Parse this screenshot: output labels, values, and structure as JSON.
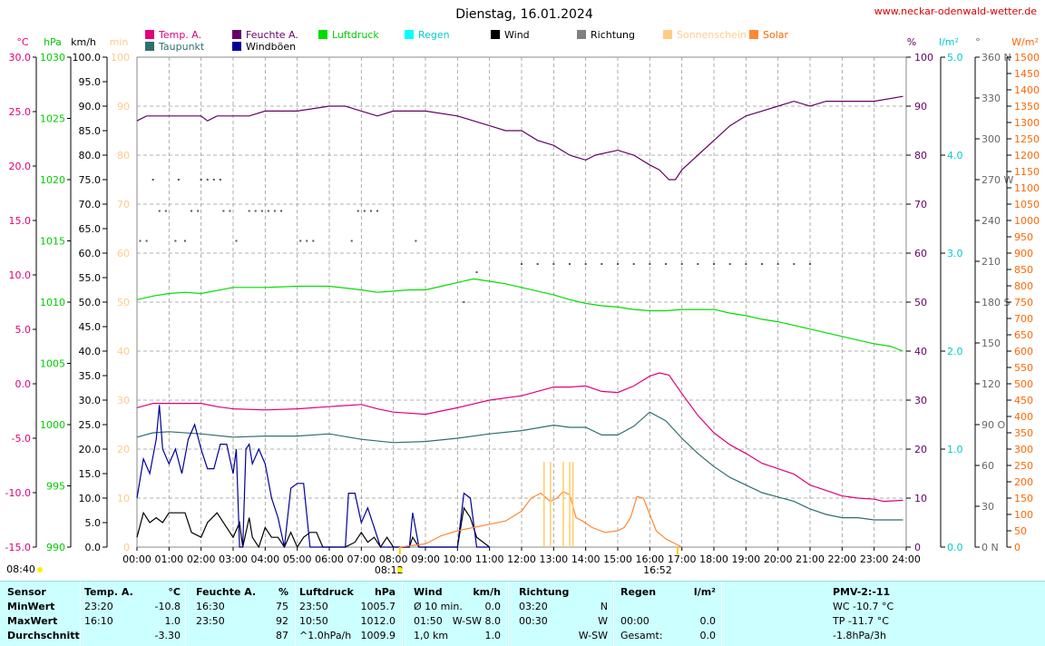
{
  "header": {
    "title": "Dienstag, 16.01.2024",
    "website": "www.neckar-odenwald-wetter.de"
  },
  "legend": [
    {
      "name": "Temp. A.",
      "color": "#e0007c",
      "row": 0,
      "col": 0
    },
    {
      "name": "Taupunkt",
      "color": "#2e6f6f",
      "row": 1,
      "col": 0
    },
    {
      "name": "Feuchte A.",
      "color": "#660066",
      "row": 0,
      "col": 1
    },
    {
      "name": "Windböen",
      "color": "#000099",
      "row": 1,
      "col": 1
    },
    {
      "name": "Luftdruck",
      "color": "#00dd00",
      "row": 0,
      "col": 2
    },
    {
      "name": "Regen",
      "color": "#00ffff",
      "row": 0,
      "col": 3
    },
    {
      "name": "Wind",
      "color": "#000000",
      "row": 0,
      "col": 4
    },
    {
      "name": "Richtung",
      "color": "#808080",
      "row": 0,
      "col": 5
    },
    {
      "name": "Sonnenschein",
      "color": "#ffcc88",
      "row": 0,
      "col": 6
    },
    {
      "name": "Solar",
      "color": "#ff8833",
      "row": 0,
      "col": 7
    }
  ],
  "axes": {
    "temp": {
      "unit": "°C",
      "color": "#e0007c",
      "ticks": [
        "30.0",
        "25.0",
        "20.0",
        "15.0",
        "10.0",
        "5.0",
        "0.0",
        "-5.0",
        "-10.0",
        "-15.0"
      ]
    },
    "pressure": {
      "unit": "hPa",
      "color": "#00bb00",
      "ticks": [
        "1030",
        "1025",
        "1020",
        "1015",
        "1010",
        "1005",
        "1000",
        "995",
        "990"
      ]
    },
    "wind": {
      "unit": "km/h",
      "color": "#000000",
      "ticks": [
        "100.0",
        "95.0",
        "90.0",
        "85.0",
        "80.0",
        "75.0",
        "70.0",
        "65.0",
        "60.0",
        "55.0",
        "50.0",
        "45.0",
        "40.0",
        "35.0",
        "30.0",
        "25.0",
        "20.0",
        "15.0",
        "10.0",
        "5.0",
        "0.0"
      ]
    },
    "sun": {
      "unit": "min",
      "color": "#ffcc88",
      "ticks": [
        "100",
        "90",
        "80",
        "70",
        "60",
        "50",
        "40",
        "30",
        "20",
        "10",
        "0"
      ]
    },
    "humidity": {
      "unit": "%",
      "color": "#660066",
      "ticks": [
        "100",
        "90",
        "80",
        "70",
        "60",
        "50",
        "40",
        "30",
        "20",
        "10",
        "0"
      ]
    },
    "rain": {
      "unit": "l/m²",
      "color": "#00cccc",
      "ticks": [
        "5.0",
        "4.0",
        "3.0",
        "2.0",
        "1.0",
        "0.0"
      ]
    },
    "direction": {
      "unit": "°",
      "color": "#666666",
      "ticks": [
        "360 N",
        "330",
        "300",
        "270 W",
        "240",
        "210",
        "180 S",
        "150",
        "120",
        "90 O",
        "60",
        "30",
        "0 N"
      ]
    },
    "solar": {
      "unit": "W/m²",
      "color": "#ff6600",
      "ticks": [
        "1500",
        "1450",
        "1400",
        "1350",
        "1300",
        "1250",
        "1200",
        "1150",
        "1100",
        "1050",
        "1000",
        "950",
        "900",
        "850",
        "800",
        "750",
        "700",
        "650",
        "600",
        "550",
        "500",
        "450",
        "400",
        "350",
        "300",
        "250",
        "200",
        "150",
        "100",
        "50",
        "0"
      ]
    },
    "time_ticks": [
      "00:00",
      "01:00",
      "02:00",
      "03:00",
      "04:00",
      "05:00",
      "06:00",
      "07:00",
      "08:00",
      "09:00",
      "10:00",
      "11:00",
      "12:00",
      "13:00",
      "14:00",
      "15:00",
      "16:00",
      "17:00",
      "18:00",
      "19:00",
      "20:00",
      "21:00",
      "22:00",
      "23:00",
      "24:00"
    ]
  },
  "sun_events": {
    "moonrise": "08:40",
    "sunrise": "08:12",
    "sunset": "16:52"
  },
  "chart_data": {
    "type": "line",
    "x_unit": "hour of day",
    "xlim": [
      0,
      24
    ],
    "grid": true,
    "series": [
      {
        "name": "Temp. A.",
        "unit": "°C",
        "x": [
          0,
          0.5,
          1,
          1.5,
          2,
          2.5,
          3,
          4,
          5,
          6,
          7,
          7.5,
          8,
          9,
          10,
          11,
          12,
          13,
          13.5,
          14,
          14.5,
          15,
          15.5,
          16,
          16.3,
          16.6,
          17,
          17.5,
          18,
          18.5,
          19,
          19.5,
          20,
          20.5,
          21,
          21.5,
          22,
          22.5,
          23,
          23.3,
          23.9
        ],
        "values": [
          -2.2,
          -1.8,
          -1.8,
          -1.8,
          -1.8,
          -2.1,
          -2.3,
          -2.4,
          -2.3,
          -2.1,
          -1.9,
          -2.3,
          -2.6,
          -2.8,
          -2.2,
          -1.5,
          -1.1,
          -0.3,
          -0.3,
          -0.2,
          -0.7,
          -0.8,
          -0.2,
          0.7,
          1.0,
          0.8,
          -0.9,
          -2.9,
          -4.5,
          -5.6,
          -6.4,
          -7.3,
          -7.8,
          -8.3,
          -9.3,
          -9.8,
          -10.3,
          -10.5,
          -10.6,
          -10.8,
          -10.7
        ]
      },
      {
        "name": "Taupunkt",
        "unit": "°C",
        "x": [
          0,
          0.5,
          1,
          2,
          3,
          4,
          5,
          6,
          7,
          8,
          9,
          10,
          11,
          12,
          13,
          13.5,
          14,
          14.5,
          15,
          15.5,
          16,
          16.5,
          17,
          17.5,
          18,
          18.5,
          19,
          19.5,
          20,
          20.5,
          21,
          21.5,
          22,
          22.5,
          23,
          23.9
        ],
        "values": [
          -4.9,
          -4.5,
          -4.4,
          -4.6,
          -4.9,
          -4.8,
          -4.8,
          -4.6,
          -5.1,
          -5.4,
          -5.3,
          -5.0,
          -4.6,
          -4.3,
          -3.8,
          -4.0,
          -4.0,
          -4.7,
          -4.7,
          -3.9,
          -2.6,
          -3.4,
          -5.0,
          -6.4,
          -7.6,
          -8.6,
          -9.3,
          -10.0,
          -10.4,
          -10.8,
          -11.5,
          -12.0,
          -12.3,
          -12.3,
          -12.5,
          -12.5
        ]
      },
      {
        "name": "Feuchte A.",
        "unit": "%",
        "x": [
          0,
          0.3,
          1,
          2,
          2.2,
          2.5,
          3,
          3.5,
          4,
          5,
          6,
          6.5,
          7,
          7.5,
          8,
          9,
          10,
          10.5,
          11,
          11.5,
          12,
          12.5,
          13,
          13.5,
          14,
          14.3,
          15,
          15.5,
          16,
          16.3,
          16.6,
          16.8,
          17,
          17.5,
          18,
          18.5,
          19,
          19.5,
          20,
          20.5,
          21,
          21.5,
          22,
          22.5,
          23,
          23.9
        ],
        "values": [
          87,
          88,
          88,
          88,
          87,
          88,
          88,
          88,
          89,
          89,
          90,
          90,
          89,
          88,
          89,
          89,
          88,
          87,
          86,
          85,
          85,
          83,
          82,
          80,
          79,
          80,
          81,
          80,
          78,
          77,
          75,
          75,
          77,
          80,
          83,
          86,
          88,
          89,
          90,
          91,
          90,
          91,
          91,
          91,
          91,
          92
        ]
      },
      {
        "name": "Luftdruck",
        "unit": "hPa",
        "x": [
          0,
          0.5,
          1,
          1.5,
          2,
          3,
          4,
          5,
          6,
          7,
          7.5,
          8,
          8.5,
          9,
          9.5,
          10,
          10.5,
          11,
          11.5,
          12,
          12.5,
          13,
          13.5,
          14,
          14.5,
          15,
          15.5,
          16,
          16.5,
          17,
          17.5,
          18,
          18.5,
          19,
          19.5,
          20,
          20.5,
          21,
          21.5,
          22,
          22.5,
          23,
          23.5,
          23.9
        ],
        "values": [
          1010.2,
          1010.5,
          1010.7,
          1010.8,
          1010.7,
          1011.2,
          1011.2,
          1011.3,
          1011.3,
          1011.0,
          1010.8,
          1010.9,
          1011.0,
          1011.0,
          1011.3,
          1011.6,
          1011.9,
          1011.7,
          1011.5,
          1011.2,
          1010.9,
          1010.6,
          1010.2,
          1009.9,
          1009.7,
          1009.6,
          1009.4,
          1009.3,
          1009.3,
          1009.4,
          1009.4,
          1009.4,
          1009.1,
          1008.9,
          1008.6,
          1008.4,
          1008.1,
          1007.8,
          1007.5,
          1007.2,
          1006.9,
          1006.6,
          1006.4,
          1006.0
        ]
      },
      {
        "name": "Wind",
        "unit": "km/h",
        "x": [
          0,
          0.2,
          0.4,
          0.6,
          0.8,
          1,
          1.5,
          1.7,
          2,
          2.2,
          2.5,
          2.8,
          3,
          3.2,
          3.3,
          3.5,
          3.6,
          3.8,
          4,
          4.2,
          4.4,
          4.6,
          4.8,
          5,
          5.2,
          5.4,
          5.6,
          5.8,
          6,
          6.5,
          6.8,
          7,
          7.2,
          7.4,
          7.6,
          7.8,
          8,
          8.5,
          8.6,
          8.8,
          9,
          9.5,
          10,
          10.2,
          10.4,
          10.6,
          10.8,
          11
        ],
        "values": [
          2,
          7,
          5,
          6,
          5,
          7,
          7,
          3,
          2,
          5,
          7,
          4,
          2,
          5,
          0,
          6,
          2,
          0,
          4,
          2,
          2,
          0,
          3,
          0,
          2,
          3,
          3,
          0,
          0,
          0,
          1,
          3,
          1,
          2,
          0,
          2,
          0,
          0,
          2,
          0,
          0,
          0,
          0,
          8,
          6,
          2,
          1,
          0
        ]
      },
      {
        "name": "Windböen",
        "unit": "km/h",
        "x": [
          0,
          0.2,
          0.4,
          0.6,
          0.7,
          0.8,
          1,
          1.2,
          1.4,
          1.6,
          1.8,
          2,
          2.2,
          2.4,
          2.6,
          2.8,
          3,
          3.1,
          3.2,
          3.3,
          3.4,
          3.5,
          3.6,
          3.8,
          4,
          4.2,
          4.4,
          4.6,
          4.8,
          5,
          5.2,
          5.4,
          5.6,
          5.8,
          6,
          6.5,
          6.6,
          6.8,
          7,
          7.2,
          7.4,
          7.6,
          7.8,
          8,
          8.5,
          8.6,
          8.8,
          9,
          9.5,
          10,
          10.2,
          10.4,
          10.6,
          10.8,
          11
        ],
        "values": [
          10,
          18,
          15,
          22,
          29,
          20,
          17,
          20,
          15,
          22,
          25,
          20,
          16,
          16,
          21,
          21,
          15,
          20,
          0,
          0,
          20,
          21,
          17,
          20,
          17,
          10,
          6,
          0,
          12,
          13,
          13,
          0,
          0,
          0,
          0,
          0,
          11,
          11,
          5,
          8,
          4,
          0,
          0,
          0,
          0,
          7,
          0,
          0,
          0,
          0,
          11,
          10,
          0,
          0,
          0
        ]
      },
      {
        "name": "Solar",
        "unit": "W/m²",
        "x": [
          8.2,
          9,
          9.5,
          10,
          10.5,
          11,
          11.5,
          12,
          12.3,
          12.6,
          12.9,
          13.1,
          13.3,
          13.5,
          13.7,
          13.9,
          14.2,
          14.6,
          15,
          15.2,
          15.4,
          15.6,
          15.8,
          16,
          16.2,
          16.5,
          16.8,
          17
        ],
        "values": [
          0,
          10,
          35,
          50,
          60,
          70,
          80,
          110,
          150,
          165,
          140,
          150,
          170,
          160,
          90,
          80,
          60,
          45,
          50,
          60,
          90,
          155,
          150,
          100,
          50,
          25,
          10,
          0
        ]
      },
      {
        "name": "Sonnenschein",
        "unit": "min",
        "x": [
          12.7,
          12.9,
          13.3,
          13.5,
          13.6
        ],
        "values": [
          10,
          10,
          10,
          10,
          10
        ]
      }
    ],
    "direction_points": [
      {
        "x": 0.1,
        "deg": 225
      },
      {
        "x": 0.3,
        "deg": 225
      },
      {
        "x": 0.5,
        "deg": 270
      },
      {
        "x": 0.7,
        "deg": 247
      },
      {
        "x": 0.9,
        "deg": 247
      },
      {
        "x": 1.2,
        "deg": 225
      },
      {
        "x": 1.3,
        "deg": 270
      },
      {
        "x": 1.5,
        "deg": 225
      },
      {
        "x": 1.7,
        "deg": 247
      },
      {
        "x": 1.9,
        "deg": 247
      },
      {
        "x": 2.0,
        "deg": 270
      },
      {
        "x": 2.2,
        "deg": 270
      },
      {
        "x": 2.4,
        "deg": 270
      },
      {
        "x": 2.6,
        "deg": 270
      },
      {
        "x": 2.7,
        "deg": 247
      },
      {
        "x": 2.9,
        "deg": 247
      },
      {
        "x": 3.1,
        "deg": 225
      },
      {
        "x": 3.5,
        "deg": 247
      },
      {
        "x": 3.7,
        "deg": 247
      },
      {
        "x": 3.9,
        "deg": 247
      },
      {
        "x": 4.1,
        "deg": 247
      },
      {
        "x": 4.3,
        "deg": 247
      },
      {
        "x": 4.5,
        "deg": 247
      },
      {
        "x": 5.1,
        "deg": 225
      },
      {
        "x": 5.3,
        "deg": 225
      },
      {
        "x": 5.5,
        "deg": 225
      },
      {
        "x": 6.7,
        "deg": 225
      },
      {
        "x": 6.9,
        "deg": 247
      },
      {
        "x": 7.1,
        "deg": 247
      },
      {
        "x": 7.3,
        "deg": 247
      },
      {
        "x": 7.5,
        "deg": 247
      },
      {
        "x": 8.7,
        "deg": 225
      },
      {
        "x": 10.2,
        "deg": 180
      },
      {
        "x": 10.6,
        "deg": 202
      },
      {
        "x": 12.0,
        "deg": 208
      },
      {
        "x": 12.5,
        "deg": 208
      },
      {
        "x": 13.0,
        "deg": 208
      },
      {
        "x": 13.5,
        "deg": 208
      },
      {
        "x": 14.0,
        "deg": 208
      },
      {
        "x": 14.5,
        "deg": 208
      },
      {
        "x": 15.0,
        "deg": 208
      },
      {
        "x": 15.5,
        "deg": 208
      },
      {
        "x": 16.0,
        "deg": 208
      },
      {
        "x": 16.5,
        "deg": 208
      },
      {
        "x": 17.0,
        "deg": 208
      },
      {
        "x": 17.5,
        "deg": 208
      },
      {
        "x": 18.0,
        "deg": 208
      },
      {
        "x": 18.5,
        "deg": 208
      },
      {
        "x": 19.0,
        "deg": 208
      },
      {
        "x": 19.5,
        "deg": 208
      },
      {
        "x": 20.0,
        "deg": 208
      },
      {
        "x": 20.5,
        "deg": 208
      },
      {
        "x": 21.0,
        "deg": 208
      }
    ]
  },
  "stats": {
    "header": [
      "Sensor",
      "Temp. A.",
      "°C",
      "Feuchte A.",
      "%",
      "Luftdruck",
      "hPa",
      "Wind",
      "km/h",
      "Richtung",
      "",
      "Regen",
      "l/m²",
      "PMV-2:-11"
    ],
    "rows": [
      [
        "MinWert",
        "23:20",
        "-10.8",
        "16:30",
        "75",
        "23:50",
        "1005.7",
        "Ø 10 min.",
        "0.0",
        "03:20",
        "N",
        "",
        "",
        "WC -10.7 °C"
      ],
      [
        "MaxWert",
        "16:10",
        "1.0",
        "23:50",
        "92",
        "10:50",
        "1012.0",
        "01:50",
        "W-SW 8.0",
        "00:30",
        "W",
        "00:00",
        "0.0",
        "TP -11.7 °C"
      ],
      [
        "Durchschnitt",
        "",
        "-3.30",
        "",
        "87",
        "^1.0hPa/h",
        "1009.9",
        "1,0 km",
        "1.0",
        "",
        "W-SW",
        "Gesamt:",
        "0.0",
        "-1.8hPa/3h"
      ]
    ]
  }
}
